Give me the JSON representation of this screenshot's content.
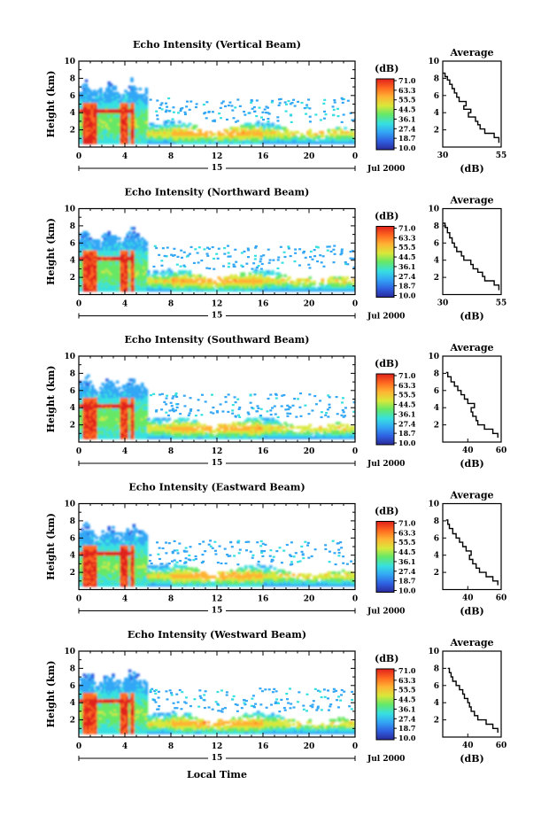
{
  "figure": {
    "date_label": "Jul 2000",
    "bottom_xlabel": "Local Time",
    "day_label": "15",
    "height_label": "Height (km)",
    "unit_label": "(dB)",
    "average_title": "Average",
    "colorbar_ticks": [
      "71.0",
      "63.3",
      "55.5",
      "44.5",
      "36.1",
      "27.4",
      "18.7",
      "10.0"
    ]
  },
  "colors": {
    "colorbar": [
      "#2a2a9a",
      "#2f5fe0",
      "#33a7f5",
      "#37e0e0",
      "#66e866",
      "#d9e83a",
      "#ffb233",
      "#ff6a20",
      "#e0201b"
    ]
  },
  "chart_data": [
    {
      "type": "heatmap",
      "title": "Echo Intensity (Vertical Beam)",
      "xlabel": "",
      "ylabel": "Height (km)",
      "xlim": [
        0,
        24
      ],
      "ylim": [
        0,
        10
      ],
      "x_ticks": [
        "0",
        "4",
        "8",
        "12",
        "16",
        "20",
        "0"
      ],
      "y_ticks": [
        "2",
        "4",
        "6",
        "8",
        "10"
      ],
      "colorbar": {
        "label": "(dB)",
        "range": [
          10.0,
          71.0
        ]
      },
      "average": {
        "title": "Average",
        "xlabel": "(dB)",
        "xlim": [
          30,
          55
        ],
        "x_ticks": [
          "30",
          "55"
        ],
        "y_ticks": [
          "2",
          "4",
          "6",
          "8",
          "10"
        ],
        "profile": [
          [
            54,
            0.5
          ],
          [
            52,
            1.1
          ],
          [
            48,
            1.6
          ],
          [
            46,
            2.1
          ],
          [
            45,
            2.6
          ],
          [
            44,
            3.0
          ],
          [
            41,
            3.5
          ],
          [
            42,
            4.0
          ],
          [
            39,
            4.4
          ],
          [
            40,
            4.8
          ],
          [
            37,
            5.3
          ],
          [
            36,
            5.8
          ],
          [
            35,
            6.3
          ],
          [
            34,
            6.8
          ],
          [
            33,
            7.3
          ],
          [
            32,
            7.8
          ],
          [
            31,
            8.2
          ],
          [
            30,
            8.6
          ]
        ]
      }
    },
    {
      "type": "heatmap",
      "title": "Echo Intensity (Northward Beam)",
      "xlabel": "",
      "ylabel": "Height (km)",
      "xlim": [
        0,
        24
      ],
      "ylim": [
        0,
        10
      ],
      "x_ticks": [
        "0",
        "4",
        "8",
        "12",
        "16",
        "20",
        "0"
      ],
      "y_ticks": [
        "2",
        "4",
        "6",
        "8",
        "10"
      ],
      "colorbar": {
        "label": "(dB)",
        "range": [
          10.0,
          71.0
        ]
      },
      "average": {
        "title": "Average",
        "xlabel": "(dB)",
        "xlim": [
          30,
          55
        ],
        "x_ticks": [
          "30",
          "55"
        ],
        "y_ticks": [
          "2",
          "4",
          "6",
          "8",
          "10"
        ],
        "profile": [
          [
            54,
            0.5
          ],
          [
            52,
            1.1
          ],
          [
            48,
            1.6
          ],
          [
            47,
            2.1
          ],
          [
            45,
            2.6
          ],
          [
            43,
            3.0
          ],
          [
            42,
            3.5
          ],
          [
            39,
            4.0
          ],
          [
            38,
            4.5
          ],
          [
            36,
            5.0
          ],
          [
            35,
            5.5
          ],
          [
            34,
            6.0
          ],
          [
            33,
            6.6
          ],
          [
            32,
            7.2
          ],
          [
            31,
            7.8
          ],
          [
            30,
            8.3
          ]
        ]
      }
    },
    {
      "type": "heatmap",
      "title": "Echo Intensity (Southward Beam)",
      "xlabel": "",
      "ylabel": "Height (km)",
      "xlim": [
        0,
        24
      ],
      "ylim": [
        0,
        10
      ],
      "x_ticks": [
        "0",
        "4",
        "8",
        "12",
        "16",
        "20",
        "0"
      ],
      "y_ticks": [
        "2",
        "4",
        "6",
        "8",
        "10"
      ],
      "colorbar": {
        "label": "(dB)",
        "range": [
          10.0,
          71.0
        ]
      },
      "average": {
        "title": "Average",
        "xlabel": "(dB)",
        "xlim": [
          25,
          60
        ],
        "x_ticks": [
          "40",
          "60"
        ],
        "y_ticks": [
          "2",
          "4",
          "6",
          "8",
          "10"
        ],
        "profile": [
          [
            58,
            0.5
          ],
          [
            55,
            1.0
          ],
          [
            50,
            1.5
          ],
          [
            46,
            2.0
          ],
          [
            45,
            2.5
          ],
          [
            43,
            3.0
          ],
          [
            42,
            3.5
          ],
          [
            44,
            4.0
          ],
          [
            40,
            4.5
          ],
          [
            38,
            5.0
          ],
          [
            36,
            5.5
          ],
          [
            34,
            6.0
          ],
          [
            32,
            6.5
          ],
          [
            30,
            7.0
          ],
          [
            28,
            7.6
          ],
          [
            27,
            8.1
          ]
        ]
      }
    },
    {
      "type": "heatmap",
      "title": "Echo Intensity (Eastward Beam)",
      "xlabel": "",
      "ylabel": "Height (km)",
      "xlim": [
        0,
        24
      ],
      "ylim": [
        0,
        10
      ],
      "x_ticks": [
        "0",
        "4",
        "8",
        "12",
        "16",
        "20",
        "0"
      ],
      "y_ticks": [
        "2",
        "4",
        "6",
        "8",
        "10"
      ],
      "colorbar": {
        "label": "(dB)",
        "range": [
          10.0,
          71.0
        ]
      },
      "average": {
        "title": "Average",
        "xlabel": "(dB)",
        "xlim": [
          25,
          60
        ],
        "x_ticks": [
          "40",
          "60"
        ],
        "y_ticks": [
          "2",
          "4",
          "6",
          "8",
          "10"
        ],
        "profile": [
          [
            58,
            0.5
          ],
          [
            55,
            1.0
          ],
          [
            51,
            1.5
          ],
          [
            47,
            2.0
          ],
          [
            45,
            2.5
          ],
          [
            43,
            3.0
          ],
          [
            41,
            3.5
          ],
          [
            42,
            4.0
          ],
          [
            39,
            4.5
          ],
          [
            37,
            5.0
          ],
          [
            35,
            5.5
          ],
          [
            33,
            6.0
          ],
          [
            31,
            6.5
          ],
          [
            29,
            7.1
          ],
          [
            28,
            7.6
          ],
          [
            27,
            8.1
          ]
        ]
      }
    },
    {
      "type": "heatmap",
      "title": "Echo Intensity (Westward Beam)",
      "xlabel": "",
      "ylabel": "Height (km)",
      "xlim": [
        0,
        24
      ],
      "ylim": [
        0,
        10
      ],
      "x_ticks": [
        "0",
        "4",
        "8",
        "12",
        "16",
        "20",
        "0"
      ],
      "y_ticks": [
        "2",
        "4",
        "6",
        "8",
        "10"
      ],
      "colorbar": {
        "label": "(dB)",
        "range": [
          10.0,
          71.0
        ]
      },
      "average": {
        "title": "Average",
        "xlabel": "(dB)",
        "xlim": [
          25,
          60
        ],
        "x_ticks": [
          "40",
          "60"
        ],
        "y_ticks": [
          "2",
          "4",
          "6",
          "8",
          "10"
        ],
        "profile": [
          [
            58,
            0.5
          ],
          [
            55,
            1.0
          ],
          [
            51,
            1.5
          ],
          [
            46,
            2.0
          ],
          [
            44,
            2.5
          ],
          [
            42,
            3.0
          ],
          [
            41,
            3.5
          ],
          [
            40,
            4.0
          ],
          [
            38,
            4.5
          ],
          [
            37,
            5.0
          ],
          [
            35,
            5.5
          ],
          [
            33,
            6.0
          ],
          [
            31,
            6.5
          ],
          [
            30,
            7.0
          ],
          [
            29,
            7.5
          ],
          [
            28,
            8.0
          ]
        ]
      }
    }
  ]
}
